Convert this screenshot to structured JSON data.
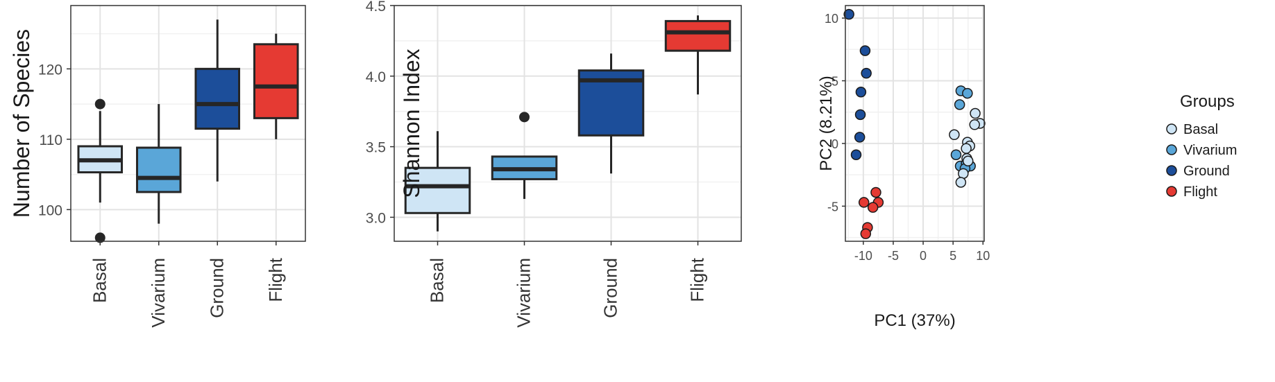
{
  "chart_data": [
    {
      "type": "box",
      "ylabel": "Number of Species",
      "categories": [
        "Basal",
        "Vivarium",
        "Ground",
        "Flight"
      ],
      "colors": [
        "#cfe5f5",
        "#5aa6d8",
        "#1c4e9a",
        "#e53a33"
      ],
      "yticks": [
        100,
        110,
        120
      ],
      "ylim": [
        95.5,
        129
      ],
      "grid": true,
      "boxes": [
        {
          "category": "Basal",
          "min": 101,
          "q1": 105.3,
          "median": 107,
          "q3": 109,
          "max": 114,
          "outliers": [
            115,
            96
          ]
        },
        {
          "category": "Vivarium",
          "min": 98,
          "q1": 102.5,
          "median": 104.5,
          "q3": 108.8,
          "max": 115,
          "outliers": []
        },
        {
          "category": "Ground",
          "min": 104,
          "q1": 111.5,
          "median": 115,
          "q3": 120,
          "max": 127,
          "outliers": []
        },
        {
          "category": "Flight",
          "min": 110,
          "q1": 113,
          "median": 117.5,
          "q3": 123.5,
          "max": 125,
          "outliers": []
        }
      ]
    },
    {
      "type": "box",
      "ylabel": "Shannon Index",
      "categories": [
        "Basal",
        "Vivarium",
        "Ground",
        "Flight"
      ],
      "colors": [
        "#cfe5f5",
        "#5aa6d8",
        "#1c4e9a",
        "#e53a33"
      ],
      "yticks": [
        3.0,
        3.5,
        4.0,
        4.5
      ],
      "ytick_labels": [
        "3.0",
        "3.5",
        "4.0",
        "4.5"
      ],
      "ylim": [
        2.83,
        4.5
      ],
      "grid": true,
      "boxes": [
        {
          "category": "Basal",
          "min": 2.9,
          "q1": 3.03,
          "median": 3.22,
          "q3": 3.35,
          "max": 3.61,
          "outliers": []
        },
        {
          "category": "Vivarium",
          "min": 3.13,
          "q1": 3.27,
          "median": 3.34,
          "q3": 3.43,
          "max": 3.43,
          "outliers": [
            3.71
          ]
        },
        {
          "category": "Ground",
          "min": 3.31,
          "q1": 3.58,
          "median": 3.97,
          "q3": 4.04,
          "max": 4.16,
          "outliers": []
        },
        {
          "category": "Flight",
          "min": 3.87,
          "q1": 4.18,
          "median": 4.31,
          "q3": 4.39,
          "max": 4.43,
          "outliers": []
        }
      ]
    },
    {
      "type": "scatter",
      "xlabel": "PC1 (37%)",
      "ylabel": "PC2 (8.21%)",
      "xticks": [
        -10,
        -5,
        0,
        5,
        10
      ],
      "yticks": [
        -5,
        0,
        5,
        10
      ],
      "xlim": [
        -13,
        10.2
      ],
      "ylim": [
        -7.8,
        11
      ],
      "grid": true,
      "legend": {
        "title": "Groups",
        "position": "right",
        "entries": [
          {
            "name": "Basal",
            "color": "#cfe5f5"
          },
          {
            "name": "Vivarium",
            "color": "#5aa6d8"
          },
          {
            "name": "Ground",
            "color": "#1c4e9a"
          },
          {
            "name": "Flight",
            "color": "#e53a33"
          }
        ]
      },
      "series": [
        {
          "name": "Ground",
          "color": "#1c4e9a",
          "points": [
            [
              -12.4,
              10.3
            ],
            [
              -9.7,
              7.4
            ],
            [
              -9.5,
              5.6
            ],
            [
              -10.4,
              4.1
            ],
            [
              -10.5,
              2.3
            ],
            [
              -10.6,
              0.5
            ],
            [
              -11.2,
              -0.9
            ]
          ]
        },
        {
          "name": "Flight",
          "color": "#e53a33",
          "points": [
            [
              -9.9,
              -4.7
            ],
            [
              -7.9,
              -3.9
            ],
            [
              -7.5,
              -4.7
            ],
            [
              -8.4,
              -5.1
            ],
            [
              -9.3,
              -6.7
            ],
            [
              -9.6,
              -7.2
            ]
          ]
        },
        {
          "name": "Vivarium",
          "color": "#5aa6d8",
          "points": [
            [
              6.3,
              4.2
            ],
            [
              7.4,
              4.0
            ],
            [
              6.1,
              3.1
            ],
            [
              5.5,
              -0.9
            ],
            [
              6.2,
              -1.8
            ],
            [
              7.2,
              -1.6
            ],
            [
              7.9,
              -1.8
            ],
            [
              7.0,
              -2.0
            ]
          ]
        },
        {
          "name": "Basal",
          "color": "#cfe5f5",
          "points": [
            [
              8.7,
              2.4
            ],
            [
              9.5,
              1.6
            ],
            [
              8.6,
              1.5
            ],
            [
              5.2,
              0.7
            ],
            [
              7.4,
              0.1
            ],
            [
              7.8,
              -0.2
            ],
            [
              7.2,
              -0.4
            ],
            [
              7.3,
              -1.2
            ],
            [
              7.5,
              -1.4
            ],
            [
              6.7,
              -2.4
            ],
            [
              6.3,
              -3.1
            ]
          ]
        }
      ]
    }
  ]
}
